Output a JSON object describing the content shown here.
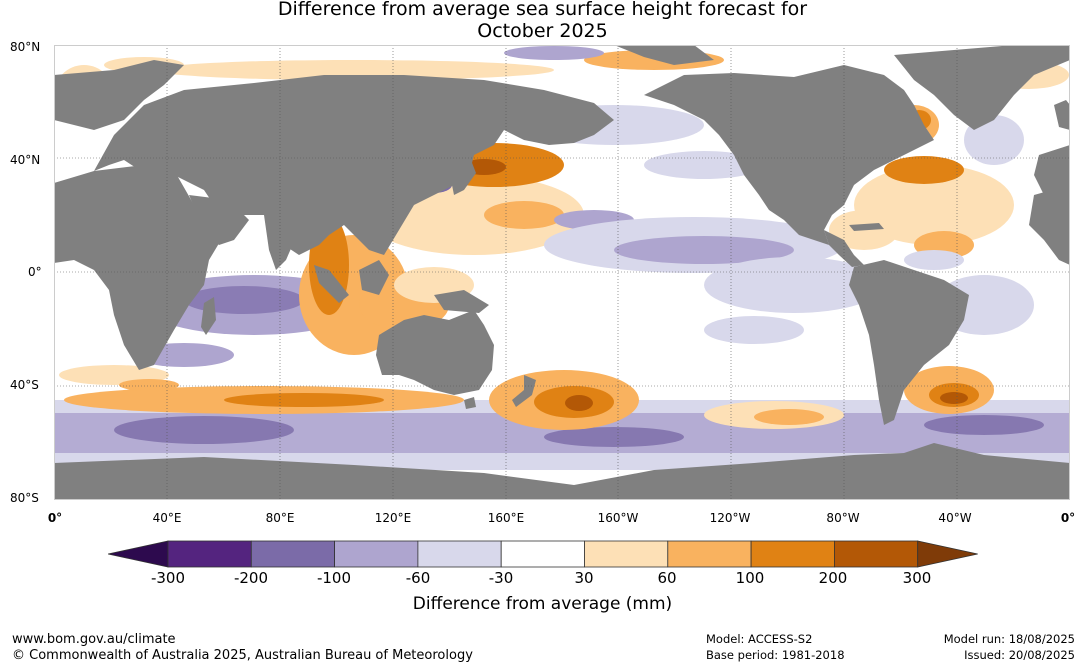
{
  "title_line1": "Difference from average sea surface height forecast for",
  "title_line2": "October 2025",
  "lat_labels": [
    "80°N",
    "40°N",
    "0°",
    "40°S",
    "80°S"
  ],
  "lon_labels": [
    "0°",
    "40°E",
    "80°E",
    "120°E",
    "160°E",
    "160°W",
    "120°W",
    "80°W",
    "40°W",
    "0°"
  ],
  "colorbar": {
    "ticks": [
      "-300",
      "-200",
      "-100",
      "-60",
      "-30",
      "30",
      "60",
      "100",
      "200",
      "300"
    ],
    "colors": [
      "#2d0a4e",
      "#54247f",
      "#7b6ba8",
      "#aea5cf",
      "#d8d8eb",
      "#ffffff",
      "#fde0b6",
      "#f9b25f",
      "#e08214",
      "#b35806",
      "#7f3b08"
    ],
    "title": "Difference from average (mm)"
  },
  "footer": {
    "url": "www.bom.gov.au/climate",
    "copyright": "© Commonwealth of Australia 2025, Australian Bureau of Meteorology",
    "model": "Model: ACCESS-S2",
    "base_period": "Base period: 1981-2018",
    "model_run": "Model run: 18/08/2025",
    "issued": "Issued: 20/08/2025"
  },
  "map_colors": {
    "land": "#808080",
    "ocean": "#ffffff"
  }
}
